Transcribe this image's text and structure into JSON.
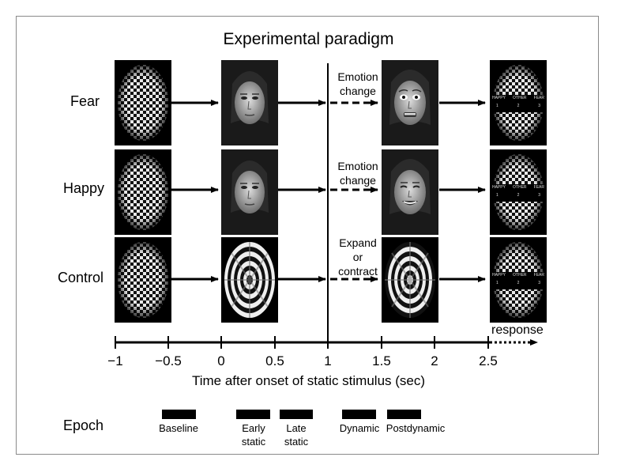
{
  "title": "Experimental paradigm",
  "rows": [
    {
      "label": "Fear",
      "annotation": [
        "Emotion",
        "change"
      ]
    },
    {
      "label": "Happy",
      "annotation": [
        "Emotion",
        "change"
      ]
    },
    {
      "label": "Control",
      "annotation": [
        "Expand",
        "or",
        "contract"
      ]
    }
  ],
  "response_screen": {
    "options": [
      "HAPPY",
      "OTHER",
      "FEAR"
    ],
    "keys": [
      "1",
      "2",
      "3"
    ]
  },
  "axis": {
    "ticks": [
      "−1",
      "−0.5",
      "0",
      "0.5",
      "1",
      "1.5",
      "2",
      "2.5"
    ],
    "label": "Time after onset of static stimulus (sec)",
    "response_label": "response"
  },
  "epoch": {
    "label": "Epoch",
    "items": [
      {
        "lines": [
          "Baseline"
        ]
      },
      {
        "lines": [
          "Early",
          "static"
        ]
      },
      {
        "lines": [
          "Late",
          "static"
        ]
      },
      {
        "lines": [
          "Dynamic"
        ]
      },
      {
        "lines": [
          "Postdynamic"
        ]
      }
    ]
  },
  "stimuli": {
    "columns": [
      "checkerboard",
      "static-face-or-radial",
      "dynamic-face-or-radial",
      "response-screen"
    ],
    "face_expressions": {
      "fear": "fearful",
      "happy": "smiling",
      "neutral": "neutral"
    }
  }
}
